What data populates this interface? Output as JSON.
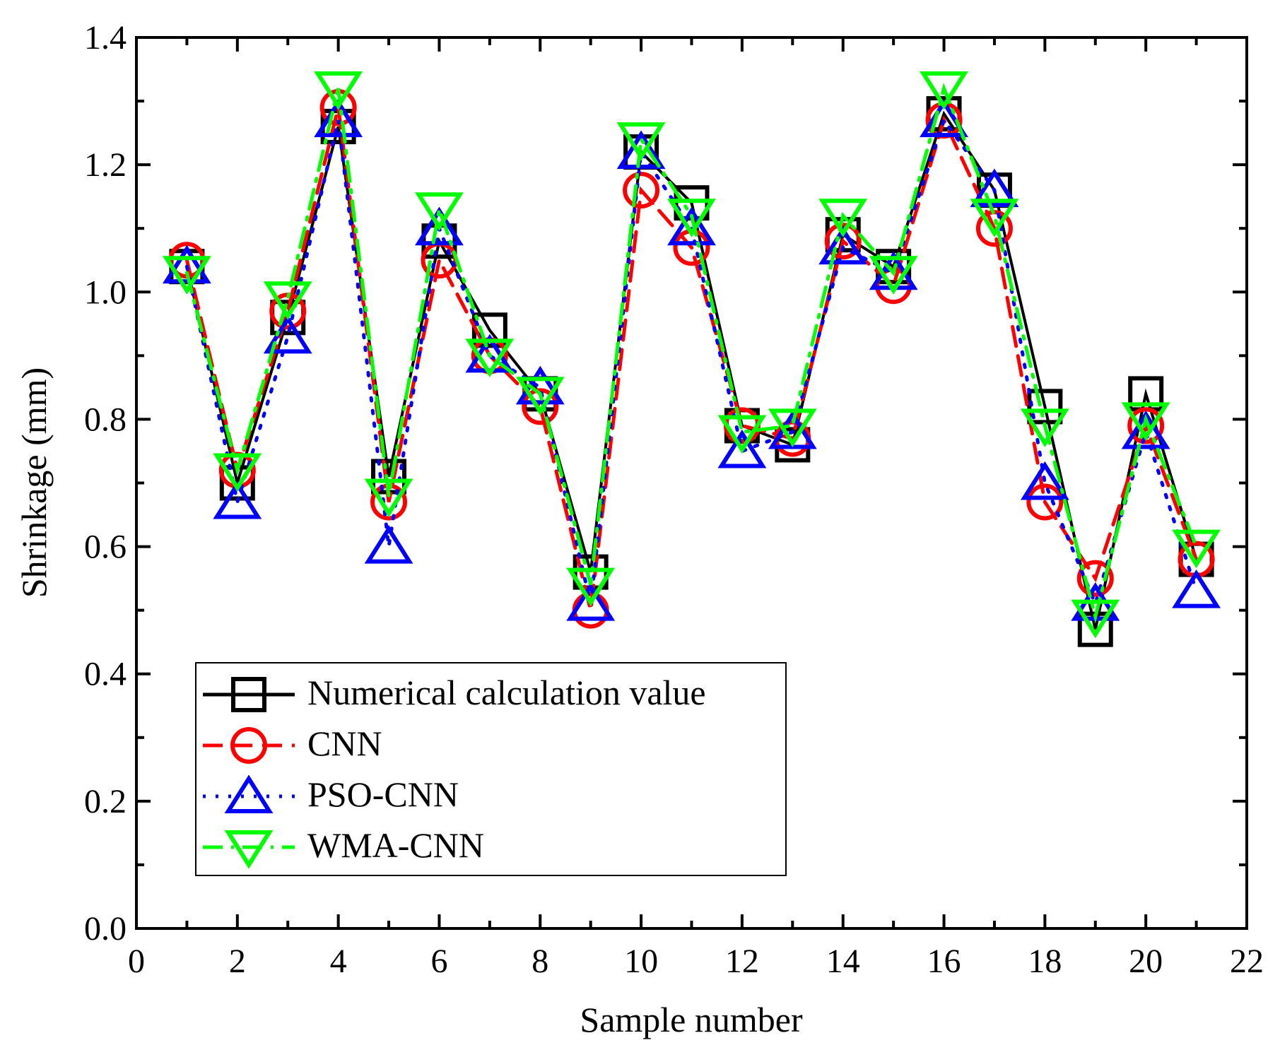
{
  "chart_data": {
    "type": "line",
    "title": "",
    "xlabel": "Sample number",
    "ylabel": "Shrinkage (mm)",
    "xlim": [
      0,
      22
    ],
    "ylim": [
      0,
      1.4
    ],
    "xticks": [
      0,
      2,
      4,
      6,
      8,
      10,
      12,
      14,
      16,
      18,
      20,
      22
    ],
    "xtick_labels": [
      "0",
      "2",
      "4",
      "6",
      "8",
      "10",
      "12",
      "14",
      "16",
      "18",
      "20",
      "22"
    ],
    "yticks": [
      0,
      0.2,
      0.4,
      0.6,
      0.8,
      1.0,
      1.2,
      1.4
    ],
    "ytick_labels": [
      "0.0",
      "0.2",
      "0.4",
      "0.6",
      "0.8",
      "1.0",
      "1.2",
      "1.4"
    ],
    "grid": false,
    "legend_position": "bottom-left",
    "x": [
      1,
      2,
      3,
      4,
      5,
      6,
      7,
      8,
      9,
      10,
      11,
      12,
      13,
      14,
      15,
      16,
      17,
      18,
      19,
      20,
      21
    ],
    "series": [
      {
        "name": "Numerical calculation value",
        "color": "#000000",
        "marker": "square",
        "dash": "solid",
        "values": [
          1.04,
          0.7,
          0.96,
          1.26,
          0.71,
          1.08,
          0.94,
          0.84,
          0.56,
          1.22,
          1.14,
          0.79,
          0.76,
          1.09,
          1.04,
          1.28,
          1.16,
          0.82,
          0.47,
          0.84,
          0.58
        ]
      },
      {
        "name": "CNN",
        "color": "#ff0000",
        "marker": "circle",
        "dash": "dash",
        "values": [
          1.05,
          0.72,
          0.97,
          1.29,
          0.67,
          1.05,
          0.9,
          0.82,
          0.5,
          1.16,
          1.07,
          0.79,
          0.77,
          1.08,
          1.01,
          1.27,
          1.1,
          0.67,
          0.55,
          0.79,
          0.58
        ]
      },
      {
        "name": "PSO-CNN",
        "color": "#0000ff",
        "marker": "triangle-up",
        "dash": "dot",
        "values": [
          1.04,
          0.67,
          0.93,
          1.27,
          0.6,
          1.1,
          0.9,
          0.85,
          0.51,
          1.22,
          1.1,
          0.75,
          0.78,
          1.07,
          1.03,
          1.27,
          1.16,
          0.7,
          0.51,
          0.78,
          0.53
        ]
      },
      {
        "name": "WMA-CNN",
        "color": "#00ff00",
        "marker": "triangle-down",
        "dash": "dashdot",
        "values": [
          1.03,
          0.72,
          0.99,
          1.32,
          0.68,
          1.13,
          0.9,
          0.84,
          0.54,
          1.24,
          1.12,
          0.78,
          0.79,
          1.12,
          1.03,
          1.32,
          1.12,
          0.79,
          0.49,
          0.8,
          0.6
        ]
      }
    ]
  }
}
